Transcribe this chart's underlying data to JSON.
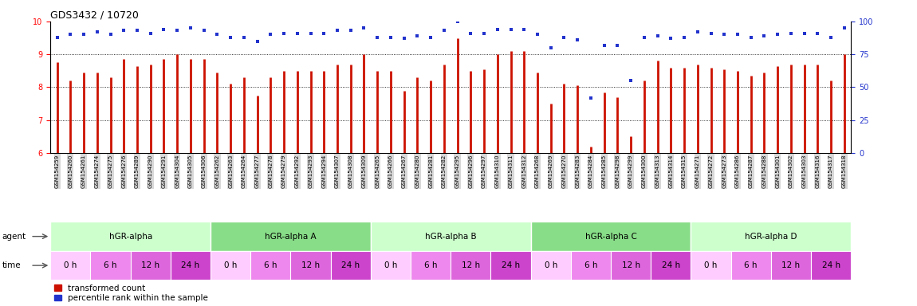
{
  "title": "GDS3432 / 10720",
  "samples": [
    "GSM154259",
    "GSM154260",
    "GSM154261",
    "GSM154274",
    "GSM154275",
    "GSM154276",
    "GSM154289",
    "GSM154290",
    "GSM154291",
    "GSM154304",
    "GSM154305",
    "GSM154306",
    "GSM154262",
    "GSM154263",
    "GSM154264",
    "GSM154277",
    "GSM154278",
    "GSM154279",
    "GSM154292",
    "GSM154293",
    "GSM154294",
    "GSM154307",
    "GSM154308",
    "GSM154309",
    "GSM154265",
    "GSM154266",
    "GSM154267",
    "GSM154280",
    "GSM154281",
    "GSM154282",
    "GSM154295",
    "GSM154296",
    "GSM154297",
    "GSM154310",
    "GSM154311",
    "GSM154312",
    "GSM154268",
    "GSM154269",
    "GSM154270",
    "GSM154283",
    "GSM154284",
    "GSM154285",
    "GSM154298",
    "GSM154299",
    "GSM154300",
    "GSM154313",
    "GSM154314",
    "GSM154315",
    "GSM154271",
    "GSM154272",
    "GSM154273",
    "GSM154286",
    "GSM154287",
    "GSM154288",
    "GSM154301",
    "GSM154302",
    "GSM154303",
    "GSM154316",
    "GSM154317",
    "GSM154318"
  ],
  "bar_values": [
    8.75,
    8.2,
    8.45,
    8.45,
    8.3,
    8.85,
    8.65,
    8.7,
    8.85,
    9.0,
    8.85,
    8.85,
    8.45,
    8.1,
    8.3,
    7.75,
    8.3,
    8.5,
    8.5,
    8.5,
    8.5,
    8.7,
    8.7,
    9.0,
    8.5,
    8.5,
    7.9,
    8.3,
    8.2,
    8.7,
    9.5,
    8.5,
    8.55,
    9.0,
    9.1,
    9.1,
    8.45,
    7.5,
    8.1,
    8.05,
    6.2,
    7.85,
    7.7,
    6.5,
    8.2,
    8.8,
    8.6,
    8.6,
    8.7,
    8.6,
    8.55,
    8.5,
    8.35,
    8.45,
    8.65,
    8.7,
    8.7,
    8.7,
    8.2,
    9.0
  ],
  "percentile_values": [
    88,
    90,
    90,
    92,
    90,
    93,
    93,
    91,
    94,
    93,
    95,
    93,
    90,
    88,
    88,
    85,
    90,
    91,
    91,
    91,
    91,
    93,
    93,
    95,
    88,
    88,
    87,
    89,
    88,
    93,
    100,
    91,
    91,
    94,
    94,
    94,
    90,
    80,
    88,
    86,
    42,
    82,
    82,
    55,
    88,
    89,
    87,
    88,
    92,
    91,
    90,
    90,
    88,
    89,
    90,
    91,
    91,
    91,
    88,
    95
  ],
  "agents": [
    {
      "label": "hGR-alpha",
      "start": 0,
      "end": 12,
      "color": "#ccffcc"
    },
    {
      "label": "hGR-alpha A",
      "start": 12,
      "end": 24,
      "color": "#88dd88"
    },
    {
      "label": "hGR-alpha B",
      "start": 24,
      "end": 36,
      "color": "#ccffcc"
    },
    {
      "label": "hGR-alpha C",
      "start": 36,
      "end": 48,
      "color": "#88dd88"
    },
    {
      "label": "hGR-alpha D",
      "start": 48,
      "end": 60,
      "color": "#ccffcc"
    }
  ],
  "times": [
    {
      "label": "0 h",
      "start": 0,
      "end": 3,
      "color": "#ffccff"
    },
    {
      "label": "6 h",
      "start": 3,
      "end": 6,
      "color": "#ee88ee"
    },
    {
      "label": "12 h",
      "start": 6,
      "end": 9,
      "color": "#dd66dd"
    },
    {
      "label": "24 h",
      "start": 9,
      "end": 12,
      "color": "#cc44cc"
    },
    {
      "label": "0 h",
      "start": 12,
      "end": 15,
      "color": "#ffccff"
    },
    {
      "label": "6 h",
      "start": 15,
      "end": 18,
      "color": "#ee88ee"
    },
    {
      "label": "12 h",
      "start": 18,
      "end": 21,
      "color": "#dd66dd"
    },
    {
      "label": "24 h",
      "start": 21,
      "end": 24,
      "color": "#cc44cc"
    },
    {
      "label": "0 h",
      "start": 24,
      "end": 27,
      "color": "#ffccff"
    },
    {
      "label": "6 h",
      "start": 27,
      "end": 30,
      "color": "#ee88ee"
    },
    {
      "label": "12 h",
      "start": 30,
      "end": 33,
      "color": "#dd66dd"
    },
    {
      "label": "24 h",
      "start": 33,
      "end": 36,
      "color": "#cc44cc"
    },
    {
      "label": "0 h",
      "start": 36,
      "end": 39,
      "color": "#ffccff"
    },
    {
      "label": "6 h",
      "start": 39,
      "end": 42,
      "color": "#ee88ee"
    },
    {
      "label": "12 h",
      "start": 42,
      "end": 45,
      "color": "#dd66dd"
    },
    {
      "label": "24 h",
      "start": 45,
      "end": 48,
      "color": "#cc44cc"
    },
    {
      "label": "0 h",
      "start": 48,
      "end": 51,
      "color": "#ffccff"
    },
    {
      "label": "6 h",
      "start": 51,
      "end": 54,
      "color": "#ee88ee"
    },
    {
      "label": "12 h",
      "start": 54,
      "end": 57,
      "color": "#dd66dd"
    },
    {
      "label": "24 h",
      "start": 57,
      "end": 60,
      "color": "#cc44cc"
    }
  ],
  "ylim_left": [
    6.0,
    10.0
  ],
  "ylim_right": [
    0,
    100
  ],
  "yticks_left": [
    6,
    7,
    8,
    9,
    10
  ],
  "yticks_right": [
    0,
    25,
    50,
    75,
    100
  ],
  "bar_color": "#cc1100",
  "dot_color": "#2233cc",
  "bg_color": "#ffffff",
  "title_fontsize": 9,
  "axis_fontsize": 7,
  "tick_fontsize": 5.0,
  "row_fontsize": 7.5,
  "legend_fontsize": 7.5
}
